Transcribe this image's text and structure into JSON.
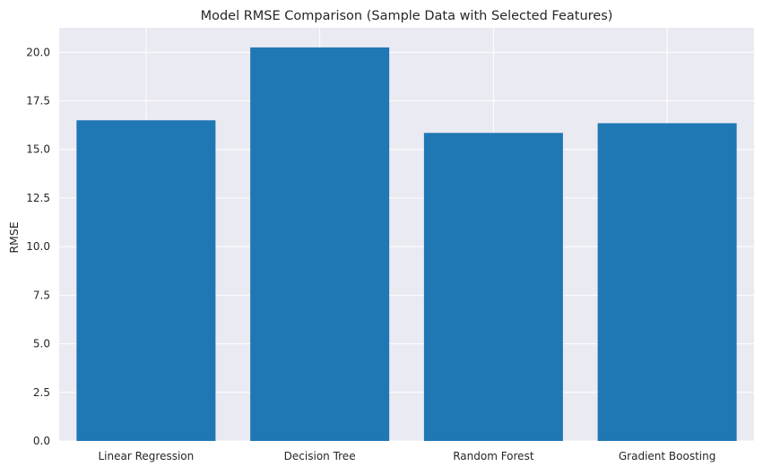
{
  "chart_data": {
    "type": "bar",
    "title": "Model RMSE Comparison (Sample Data with Selected Features)",
    "xlabel": "",
    "ylabel": "RMSE",
    "categories": [
      "Linear Regression",
      "Decision Tree",
      "Random Forest",
      "Gradient Boosting"
    ],
    "values": [
      16.5,
      20.25,
      15.85,
      16.35
    ],
    "ylim": [
      0,
      21.26
    ],
    "yticks": [
      0.0,
      2.5,
      5.0,
      7.5,
      10.0,
      12.5,
      15.0,
      17.5,
      20.0
    ],
    "ytick_labels": [
      "0.0",
      "2.5",
      "5.0",
      "7.5",
      "10.0",
      "12.5",
      "15.0",
      "17.5",
      "20.0"
    ],
    "grid": true,
    "colors": {
      "bar": "#1f77b4",
      "background": "#eaeaf2",
      "grid": "#ffffff"
    }
  }
}
